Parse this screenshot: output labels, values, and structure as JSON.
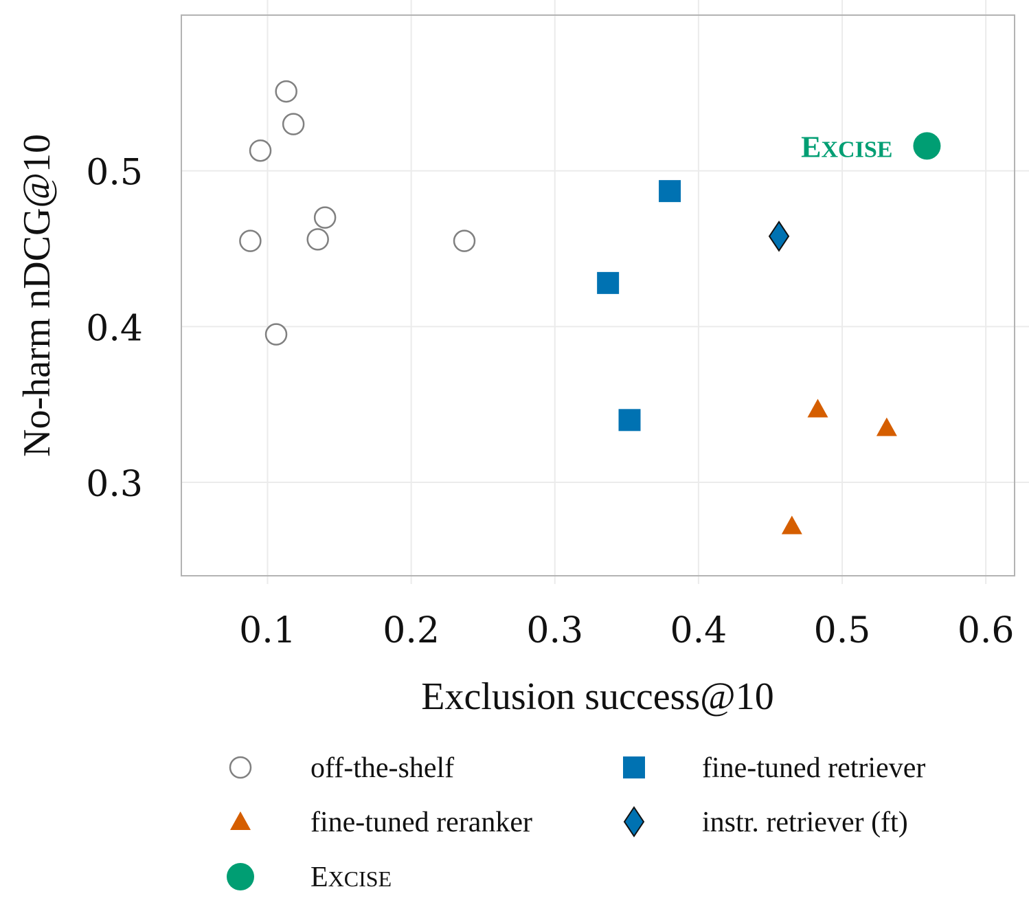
{
  "chart_data": {
    "type": "scatter",
    "title": "",
    "xlabel": "Exclusion success@10",
    "ylabel": "No-harm nDCG@10",
    "xlim": [
      0.04,
      0.62
    ],
    "ylim": [
      0.24,
      0.6
    ],
    "xticks": [
      0.1,
      0.2,
      0.3,
      0.4,
      0.5,
      0.6
    ],
    "yticks": [
      0.3,
      0.4,
      0.5
    ],
    "xtick_labels": [
      "0.1",
      "0.2",
      "0.3",
      "0.4",
      "0.5",
      "0.6"
    ],
    "ytick_labels": [
      "0.3",
      "0.4",
      "0.5"
    ],
    "grid": true,
    "legend_position": "bottom",
    "series": [
      {
        "name": "off-the-shelf",
        "marker": "circle-open",
        "color": "#808080",
        "points": [
          {
            "x": 0.113,
            "y": 0.551
          },
          {
            "x": 0.118,
            "y": 0.53
          },
          {
            "x": 0.095,
            "y": 0.513
          },
          {
            "x": 0.14,
            "y": 0.47
          },
          {
            "x": 0.088,
            "y": 0.455
          },
          {
            "x": 0.135,
            "y": 0.456
          },
          {
            "x": 0.237,
            "y": 0.455
          },
          {
            "x": 0.106,
            "y": 0.395
          }
        ]
      },
      {
        "name": "fine-tuned retriever",
        "marker": "square",
        "color": "#0072b2",
        "points": [
          {
            "x": 0.38,
            "y": 0.487
          },
          {
            "x": 0.337,
            "y": 0.428
          },
          {
            "x": 0.352,
            "y": 0.34
          }
        ]
      },
      {
        "name": "fine-tuned reranker",
        "marker": "triangle",
        "color": "#d55e00",
        "points": [
          {
            "x": 0.483,
            "y": 0.347
          },
          {
            "x": 0.531,
            "y": 0.335
          },
          {
            "x": 0.465,
            "y": 0.272
          }
        ]
      },
      {
        "name": "instr. retriever (ft)",
        "marker": "diamond",
        "color": "#0072b2",
        "points": [
          {
            "x": 0.456,
            "y": 0.458
          }
        ]
      },
      {
        "name": "Excise",
        "marker": "circle",
        "color": "#009e73",
        "points": [
          {
            "x": 0.559,
            "y": 0.516
          }
        ]
      }
    ],
    "annotations": [
      {
        "text": "Excise",
        "x": 0.559,
        "y": 0.516,
        "color": "#009e73"
      }
    ]
  }
}
